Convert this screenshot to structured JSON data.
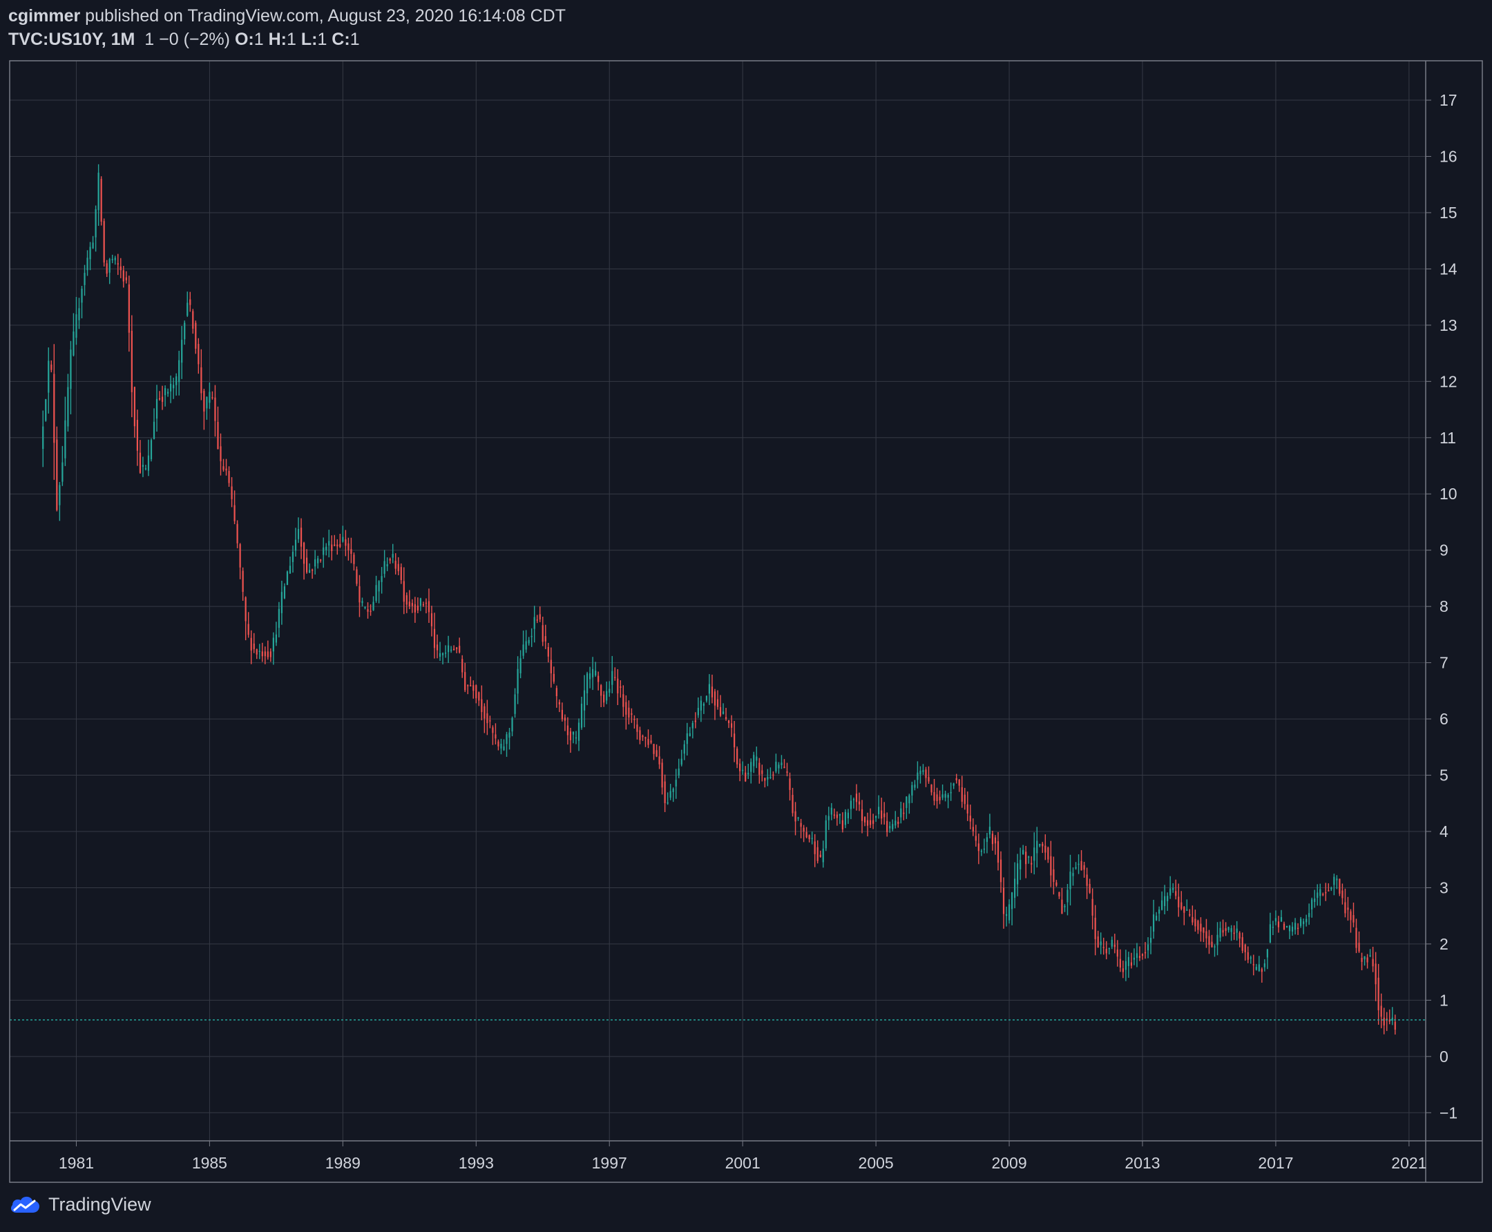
{
  "header": {
    "author": "cgimmer",
    "published_text": " published on TradingView.com, August 23, 2020 16:14:08 CDT",
    "symbol": "TVC:US10Y, 1M",
    "change": "1 −0 (−2%)",
    "o_label": "O:",
    "o_value": "1",
    "h_label": "H:",
    "h_value": "1",
    "l_label": "L:",
    "l_value": "1",
    "c_label": "C:",
    "c_value": "1"
  },
  "footer": {
    "brand": "TradingView",
    "logo_icon": "tradingview-cloud-icon"
  },
  "colors": {
    "background": "#131722",
    "grid": "#363a45",
    "border": "#787b86",
    "up": "#26a69a",
    "down": "#ef5350",
    "last_price_line": "#26a69a"
  },
  "chart_data": {
    "type": "candlestick",
    "title": "",
    "xlabel": "",
    "ylabel": "",
    "y_ticks": [
      "17",
      "16",
      "15",
      "14",
      "13",
      "12",
      "11",
      "10",
      "9",
      "8",
      "7",
      "6",
      "5",
      "4",
      "3",
      "2",
      "1",
      "0",
      "−1"
    ],
    "x_ticks": [
      "1981",
      "1985",
      "1989",
      "1993",
      "1997",
      "2001",
      "2005",
      "2009",
      "2013",
      "2017",
      "2021"
    ],
    "ylim": [
      -1.5,
      17.7
    ],
    "xlim": [
      1979.0,
      2021.5
    ],
    "grid": true,
    "last_price": 0.65,
    "series": [
      {
        "interval": "1M",
        "path": [
          [
            1980.0,
            10.8
          ],
          [
            1980.3,
            12.6
          ],
          [
            1980.5,
            9.8
          ],
          [
            1980.7,
            10.8
          ],
          [
            1980.9,
            12.4
          ],
          [
            1981.3,
            13.9
          ],
          [
            1981.6,
            14.6
          ],
          [
            1981.75,
            15.6
          ],
          [
            1981.95,
            13.8
          ],
          [
            1982.1,
            14.2
          ],
          [
            1982.4,
            14.0
          ],
          [
            1982.6,
            13.7
          ],
          [
            1982.75,
            11.9
          ],
          [
            1982.95,
            10.5
          ],
          [
            1983.2,
            10.4
          ],
          [
            1983.5,
            11.7
          ],
          [
            1983.8,
            11.8
          ],
          [
            1984.1,
            12.0
          ],
          [
            1984.4,
            13.5
          ],
          [
            1984.6,
            13.0
          ],
          [
            1984.9,
            11.5
          ],
          [
            1985.15,
            11.8
          ],
          [
            1985.4,
            10.5
          ],
          [
            1985.6,
            10.4
          ],
          [
            1985.9,
            9.2
          ],
          [
            1986.2,
            7.5
          ],
          [
            1986.45,
            7.2
          ],
          [
            1986.7,
            7.2
          ],
          [
            1986.95,
            7.2
          ],
          [
            1987.3,
            8.3
          ],
          [
            1987.75,
            9.4
          ],
          [
            1988.0,
            8.6
          ],
          [
            1988.3,
            8.8
          ],
          [
            1988.6,
            9.1
          ],
          [
            1988.9,
            9.1
          ],
          [
            1989.1,
            9.2
          ],
          [
            1989.35,
            8.9
          ],
          [
            1989.6,
            8.0
          ],
          [
            1989.9,
            7.9
          ],
          [
            1990.2,
            8.5
          ],
          [
            1990.45,
            8.9
          ],
          [
            1990.75,
            8.7
          ],
          [
            1990.95,
            8.1
          ],
          [
            1991.3,
            8.0
          ],
          [
            1991.6,
            8.1
          ],
          [
            1991.9,
            7.1
          ],
          [
            1992.2,
            7.2
          ],
          [
            1992.5,
            7.3
          ],
          [
            1992.75,
            6.6
          ],
          [
            1993.0,
            6.6
          ],
          [
            1993.4,
            6.0
          ],
          [
            1993.8,
            5.4
          ],
          [
            1994.1,
            5.8
          ],
          [
            1994.4,
            7.1
          ],
          [
            1994.7,
            7.5
          ],
          [
            1994.9,
            7.9
          ],
          [
            1995.2,
            7.2
          ],
          [
            1995.5,
            6.3
          ],
          [
            1995.8,
            5.8
          ],
          [
            1996.1,
            5.6
          ],
          [
            1996.4,
            6.7
          ],
          [
            1996.65,
            6.8
          ],
          [
            1996.9,
            6.3
          ],
          [
            1997.2,
            6.8
          ],
          [
            1997.5,
            6.3
          ],
          [
            1997.75,
            6.0
          ],
          [
            1998.0,
            5.7
          ],
          [
            1998.3,
            5.6
          ],
          [
            1998.6,
            5.2
          ],
          [
            1998.75,
            4.5
          ],
          [
            1999.0,
            4.8
          ],
          [
            1999.3,
            5.5
          ],
          [
            1999.6,
            6.0
          ],
          [
            1999.9,
            6.3
          ],
          [
            2000.1,
            6.6
          ],
          [
            2000.4,
            6.1
          ],
          [
            2000.7,
            5.9
          ],
          [
            2000.95,
            5.1
          ],
          [
            2001.2,
            5.0
          ],
          [
            2001.45,
            5.3
          ],
          [
            2001.7,
            4.9
          ],
          [
            2001.9,
            5.0
          ],
          [
            2002.2,
            5.2
          ],
          [
            2002.4,
            5.0
          ],
          [
            2002.6,
            4.3
          ],
          [
            2002.9,
            4.0
          ],
          [
            2003.2,
            3.8
          ],
          [
            2003.45,
            3.4
          ],
          [
            2003.6,
            4.3
          ],
          [
            2003.9,
            4.3
          ],
          [
            2004.1,
            4.1
          ],
          [
            2004.4,
            4.7
          ],
          [
            2004.7,
            4.2
          ],
          [
            2004.95,
            4.2
          ],
          [
            2005.2,
            4.4
          ],
          [
            2005.45,
            4.0
          ],
          [
            2005.7,
            4.2
          ],
          [
            2006.0,
            4.5
          ],
          [
            2006.3,
            5.0
          ],
          [
            2006.5,
            5.1
          ],
          [
            2006.75,
            4.7
          ],
          [
            2006.95,
            4.6
          ],
          [
            2007.2,
            4.6
          ],
          [
            2007.45,
            5.0
          ],
          [
            2007.7,
            4.6
          ],
          [
            2007.95,
            4.0
          ],
          [
            2008.2,
            3.6
          ],
          [
            2008.45,
            4.0
          ],
          [
            2008.7,
            3.8
          ],
          [
            2008.95,
            2.3
          ],
          [
            2009.2,
            2.9
          ],
          [
            2009.45,
            3.7
          ],
          [
            2009.7,
            3.4
          ],
          [
            2009.95,
            3.8
          ],
          [
            2010.2,
            3.7
          ],
          [
            2010.45,
            3.0
          ],
          [
            2010.7,
            2.6
          ],
          [
            2010.95,
            3.3
          ],
          [
            2011.2,
            3.5
          ],
          [
            2011.45,
            3.0
          ],
          [
            2011.7,
            2.0
          ],
          [
            2011.95,
            1.9
          ],
          [
            2012.2,
            2.0
          ],
          [
            2012.45,
            1.5
          ],
          [
            2012.7,
            1.7
          ],
          [
            2012.95,
            1.8
          ],
          [
            2013.2,
            1.9
          ],
          [
            2013.45,
            2.5
          ],
          [
            2013.7,
            2.7
          ],
          [
            2013.95,
            3.0
          ],
          [
            2014.2,
            2.7
          ],
          [
            2014.45,
            2.5
          ],
          [
            2014.7,
            2.4
          ],
          [
            2014.95,
            2.2
          ],
          [
            2015.2,
            1.9
          ],
          [
            2015.45,
            2.3
          ],
          [
            2015.7,
            2.2
          ],
          [
            2015.95,
            2.2
          ],
          [
            2016.2,
            1.8
          ],
          [
            2016.45,
            1.5
          ],
          [
            2016.7,
            1.6
          ],
          [
            2016.95,
            2.4
          ],
          [
            2017.2,
            2.4
          ],
          [
            2017.45,
            2.2
          ],
          [
            2017.7,
            2.3
          ],
          [
            2017.95,
            2.4
          ],
          [
            2018.2,
            2.8
          ],
          [
            2018.45,
            2.9
          ],
          [
            2018.7,
            3.0
          ],
          [
            2018.9,
            3.2
          ],
          [
            2019.1,
            2.7
          ],
          [
            2019.35,
            2.5
          ],
          [
            2019.6,
            1.7
          ],
          [
            2019.85,
            1.8
          ],
          [
            2020.05,
            1.6
          ],
          [
            2020.2,
            0.7
          ],
          [
            2020.45,
            0.65
          ],
          [
            2020.65,
            0.6
          ]
        ]
      }
    ]
  }
}
